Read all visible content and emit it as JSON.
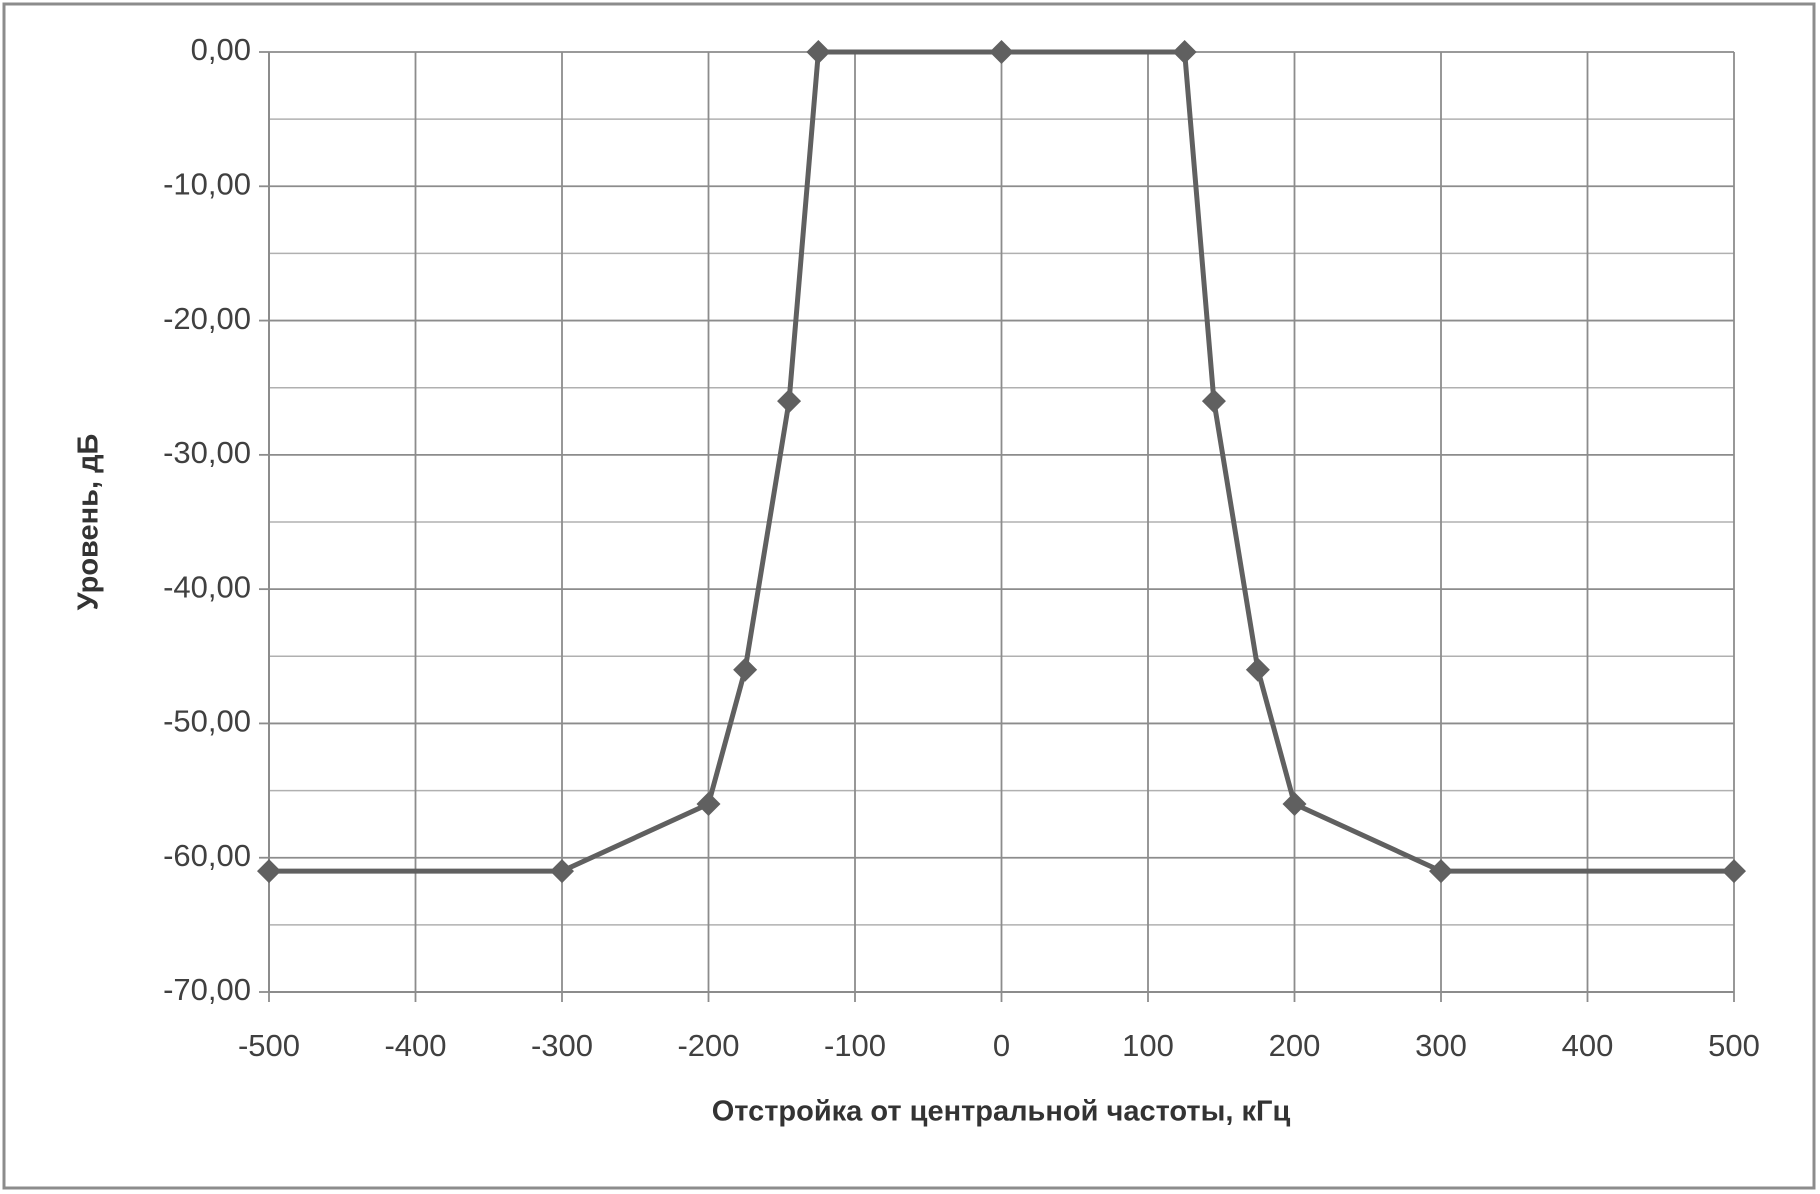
{
  "chart_data": {
    "type": "line",
    "x_label": "Отстройка от центральной частоты, кГц",
    "y_label": "Уровень, дБ",
    "x": [
      -500,
      -300,
      -200,
      -175,
      -145,
      -125,
      0,
      125,
      145,
      175,
      200,
      300,
      500
    ],
    "series": [
      {
        "color": "#606060",
        "values": [
          -61,
          -61,
          -56,
          -46,
          -26,
          0,
          0,
          0,
          -26,
          -46,
          -56,
          -61,
          -61
        ]
      }
    ],
    "xlim": [
      -500,
      500
    ],
    "xticks": [
      -500,
      -400,
      -300,
      -200,
      -100,
      0,
      100,
      200,
      300,
      400,
      500
    ],
    "ylim": [
      -70,
      0
    ],
    "yticks": [
      {
        "value": 0,
        "label": "0,00"
      },
      {
        "value": -10,
        "label": "-10,00"
      },
      {
        "value": -20,
        "label": "-20,00"
      },
      {
        "value": -30,
        "label": "-30,00"
      },
      {
        "value": -40,
        "label": "-40,00"
      },
      {
        "value": -50,
        "label": "-50,00"
      },
      {
        "value": -60,
        "label": "-60,00"
      },
      {
        "value": -70,
        "label": "-70,00"
      }
    ],
    "yminorticks": [
      -5,
      -15,
      -25,
      -35,
      -45,
      -55,
      -65
    ],
    "grid": true
  }
}
